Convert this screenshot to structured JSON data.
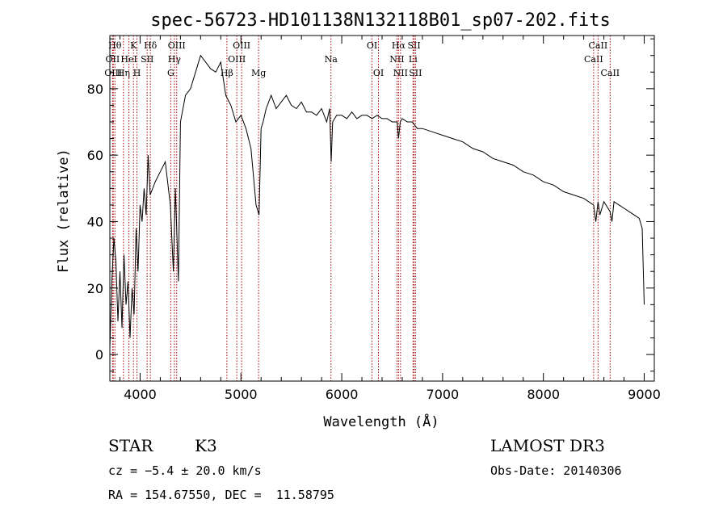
{
  "chart_data": {
    "type": "line",
    "title": "spec-56723-HD101138N132118B01_sp07-202.fits",
    "xlabel": "Wavelength (Å)",
    "ylabel": "Flux (relative)",
    "xlim": [
      3700,
      9100
    ],
    "ylim": [
      -8,
      96
    ],
    "xticks": [
      4000,
      5000,
      6000,
      7000,
      8000,
      9000
    ],
    "yticks": [
      0,
      20,
      40,
      60,
      80
    ],
    "grid": false,
    "series": [
      {
        "x": [
          3700,
          3720,
          3740,
          3760,
          3780,
          3800,
          3820,
          3840,
          3860,
          3880,
          3900,
          3920,
          3940,
          3960,
          3980,
          4000,
          4020,
          4040,
          4060,
          4080,
          4100,
          4150,
          4200,
          4250,
          4300,
          4330,
          4350,
          4380,
          4400,
          4450,
          4500,
          4550,
          4600,
          4650,
          4700,
          4750,
          4800,
          4850,
          4900,
          4950,
          5000,
          5050,
          5100,
          5150,
          5180,
          5200,
          5220,
          5250,
          5300,
          5350,
          5400,
          5450,
          5500,
          5550,
          5600,
          5650,
          5700,
          5750,
          5800,
          5850,
          5880,
          5895,
          5910,
          5950,
          6000,
          6050,
          6100,
          6150,
          6200,
          6250,
          6300,
          6350,
          6400,
          6450,
          6500,
          6550,
          6563,
          6580,
          6600,
          6650,
          6700,
          6750,
          6800,
          6900,
          7000,
          7100,
          7200,
          7300,
          7400,
          7500,
          7600,
          7700,
          7800,
          7900,
          8000,
          8100,
          8200,
          8300,
          8400,
          8498,
          8520,
          8542,
          8560,
          8600,
          8662,
          8680,
          8700,
          8750,
          8800,
          8850,
          8900,
          8950,
          8980,
          9000
        ],
        "values": [
          2,
          22,
          35,
          28,
          10,
          25,
          8,
          30,
          15,
          22,
          5,
          20,
          12,
          38,
          25,
          45,
          40,
          50,
          42,
          60,
          48,
          52,
          55,
          58,
          45,
          25,
          50,
          22,
          70,
          78,
          80,
          85,
          90,
          88,
          86,
          85,
          88,
          78,
          75,
          70,
          72,
          68,
          62,
          45,
          42,
          68,
          70,
          74,
          78,
          74,
          76,
          78,
          75,
          74,
          76,
          73,
          73,
          72,
          74,
          70,
          74,
          58,
          70,
          72,
          72,
          71,
          73,
          71,
          72,
          72,
          71,
          72,
          71,
          71,
          70,
          70,
          65,
          70,
          71,
          70,
          70,
          68,
          68,
          67,
          66,
          65,
          64,
          62,
          61,
          59,
          58,
          57,
          55,
          54,
          52,
          51,
          49,
          48,
          47,
          45,
          40,
          46,
          42,
          46,
          43,
          40,
          46,
          45,
          44,
          43,
          42,
          41,
          38,
          15
        ]
      }
    ],
    "lines": [
      {
        "x": 3750,
        "label": "Hθ",
        "row": 1
      },
      {
        "x": 3727,
        "label": "OII",
        "row": 2
      },
      {
        "x": 3734,
        "label": "OIII",
        "row": 3
      },
      {
        "x": 3835,
        "label": "Hη",
        "row": 3
      },
      {
        "x": 3889,
        "label": "HeI",
        "row": 2
      },
      {
        "x": 3934,
        "label": "K",
        "row": 1
      },
      {
        "x": 3969,
        "label": "H",
        "row": 3
      },
      {
        "x": 4070,
        "label": "SII",
        "row": 2
      },
      {
        "x": 4102,
        "label": "Hδ",
        "row": 1
      },
      {
        "x": 4304,
        "label": "G",
        "row": 3
      },
      {
        "x": 4340,
        "label": "Hγ",
        "row": 2
      },
      {
        "x": 4363,
        "label": "OIII",
        "row": 1
      },
      {
        "x": 4861,
        "label": "Hβ",
        "row": 3
      },
      {
        "x": 4959,
        "label": "OIII",
        "row": 2
      },
      {
        "x": 5007,
        "label": "OIII",
        "row": 1
      },
      {
        "x": 5175,
        "label": "Mg",
        "row": 3
      },
      {
        "x": 5893,
        "label": "Na",
        "row": 2
      },
      {
        "x": 6300,
        "label": "OI",
        "row": 1
      },
      {
        "x": 6364,
        "label": "OI",
        "row": 3
      },
      {
        "x": 6548,
        "label": "NII",
        "row": 2
      },
      {
        "x": 6563,
        "label": "Hα",
        "row": 1
      },
      {
        "x": 6583,
        "label": "NII",
        "row": 3
      },
      {
        "x": 6707,
        "label": "Li",
        "row": 2
      },
      {
        "x": 6717,
        "label": "SII",
        "row": 1
      },
      {
        "x": 6731,
        "label": "SII",
        "row": 3
      },
      {
        "x": 8498,
        "label": "CaII",
        "row": 2
      },
      {
        "x": 8542,
        "label": "CaII",
        "row": 1
      },
      {
        "x": 8662,
        "label": "CaII",
        "row": 3
      }
    ]
  },
  "info": {
    "object_class": "STAR",
    "subclass": "K3",
    "survey": "LAMOST DR3",
    "cz": "cz = −5.4 ± 20.0 km/s",
    "obs_date": "Obs-Date: 20140306",
    "coords": "RA = 154.67550, DEC =  11.58795"
  },
  "colors": {
    "axis": "#000000",
    "line": "#000000",
    "marker_lines": "#aa0000"
  }
}
